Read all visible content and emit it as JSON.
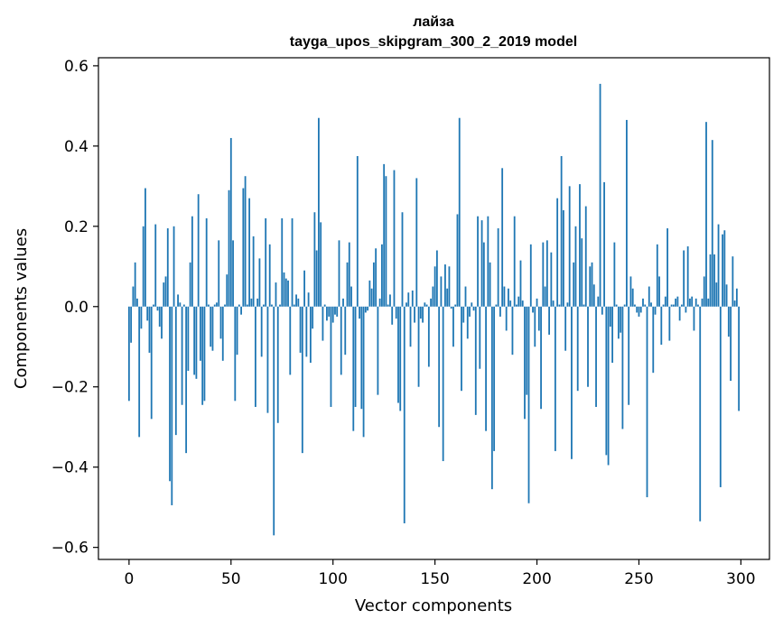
{
  "chart_data": {
    "type": "bar",
    "title": "лайза",
    "subtitle": "tayga_upos_skipgram_300_2_2019 model",
    "xlabel": "Vector components",
    "ylabel": "Components values",
    "xlim": [
      -15,
      314
    ],
    "ylim": [
      -0.63,
      0.62
    ],
    "xticks": [
      0,
      50,
      100,
      150,
      200,
      250,
      300
    ],
    "xtick_labels": [
      "0",
      "50",
      "100",
      "150",
      "200",
      "250",
      "300"
    ],
    "yticks": [
      -0.6,
      -0.4,
      -0.2,
      0.0,
      0.2,
      0.4,
      0.6
    ],
    "ytick_labels": [
      "−0.6",
      "−0.4",
      "−0.2",
      "0.0",
      "0.2",
      "0.4",
      "0.6"
    ],
    "bar_color": "#1f77b4",
    "grid": false,
    "values": [
      -0.235,
      -0.09,
      0.05,
      0.11,
      0.02,
      -0.325,
      -0.055,
      0.2,
      0.295,
      -0.035,
      -0.115,
      -0.28,
      0.005,
      0.205,
      -0.01,
      -0.05,
      -0.08,
      0.06,
      0.075,
      0.195,
      -0.435,
      -0.495,
      0.2,
      -0.32,
      0.03,
      0.01,
      -0.245,
      0.005,
      -0.365,
      -0.16,
      0.11,
      0.225,
      -0.17,
      -0.18,
      0.28,
      -0.135,
      -0.245,
      -0.235,
      0.22,
      0.005,
      -0.1,
      -0.11,
      0.005,
      0.01,
      0.165,
      -0.08,
      -0.135,
      0.005,
      0.08,
      0.29,
      0.42,
      0.165,
      -0.235,
      -0.12,
      0.005,
      -0.02,
      0.295,
      0.325,
      0.005,
      0.27,
      0.02,
      0.175,
      -0.25,
      0.02,
      0.12,
      -0.125,
      0.005,
      0.22,
      -0.265,
      0.155,
      0.005,
      -0.57,
      0.06,
      -0.29,
      0.005,
      0.22,
      0.085,
      0.07,
      0.065,
      -0.17,
      0.22,
      0.005,
      0.03,
      0.02,
      -0.115,
      -0.365,
      0.09,
      -0.125,
      0.035,
      -0.14,
      -0.055,
      0.235,
      0.14,
      0.47,
      0.21,
      -0.085,
      0.005,
      -0.035,
      -0.025,
      -0.25,
      -0.04,
      -0.02,
      -0.025,
      0.165,
      -0.17,
      0.02,
      -0.12,
      0.11,
      0.16,
      0.05,
      -0.31,
      -0.25,
      0.375,
      -0.03,
      -0.255,
      -0.325,
      -0.015,
      -0.01,
      0.065,
      0.045,
      0.11,
      0.145,
      -0.22,
      0.02,
      0.155,
      0.355,
      0.325,
      0.005,
      0.03,
      -0.045,
      0.34,
      -0.03,
      -0.24,
      -0.26,
      0.235,
      -0.54,
      0.01,
      0.035,
      -0.1,
      0.04,
      -0.04,
      0.32,
      -0.2,
      -0.03,
      -0.04,
      0.01,
      0.005,
      -0.15,
      0.02,
      0.05,
      0.1,
      0.14,
      -0.3,
      0.075,
      -0.385,
      0.105,
      0.045,
      0.1,
      -0.005,
      -0.1,
      0.005,
      0.23,
      0.47,
      -0.21,
      -0.04,
      0.05,
      -0.08,
      -0.025,
      0.01,
      -0.01,
      -0.27,
      0.225,
      -0.155,
      0.215,
      0.16,
      -0.31,
      0.225,
      0.11,
      -0.455,
      -0.36,
      0.005,
      0.195,
      -0.025,
      0.345,
      0.05,
      -0.06,
      0.045,
      0.015,
      -0.12,
      0.225,
      0.005,
      0.025,
      0.115,
      0.015,
      -0.28,
      -0.22,
      -0.49,
      0.155,
      -0.015,
      -0.1,
      0.02,
      -0.06,
      -0.255,
      0.16,
      0.05,
      0.165,
      -0.07,
      0.135,
      0.015,
      -0.36,
      0.27,
      0.005,
      0.375,
      0.24,
      -0.11,
      0.01,
      0.3,
      -0.38,
      0.11,
      0.2,
      -0.21,
      0.305,
      0.17,
      0.005,
      0.25,
      -0.2,
      0.1,
      0.11,
      0.055,
      -0.25,
      0.025,
      0.555,
      -0.02,
      0.31,
      -0.37,
      -0.395,
      -0.05,
      -0.14,
      0.16,
      0.005,
      -0.08,
      -0.065,
      -0.305,
      0.005,
      0.465,
      -0.245,
      0.075,
      0.045,
      0.005,
      -0.015,
      -0.025,
      -0.015,
      0.02,
      0.005,
      -0.475,
      0.05,
      0.01,
      -0.165,
      -0.02,
      0.155,
      0.075,
      -0.095,
      0.005,
      0.025,
      0.195,
      -0.085,
      0.005,
      0.005,
      0.02,
      0.025,
      -0.035,
      0.005,
      0.14,
      -0.015,
      0.15,
      0.02,
      0.025,
      -0.06,
      0.02,
      0.005,
      -0.535,
      0.02,
      0.075,
      0.46,
      0.02,
      0.13,
      0.415,
      0.13,
      0.06,
      0.205,
      -0.45,
      0.18,
      0.19,
      0.055,
      -0.075,
      -0.185,
      0.125,
      0.015,
      0.045,
      -0.26
    ]
  }
}
